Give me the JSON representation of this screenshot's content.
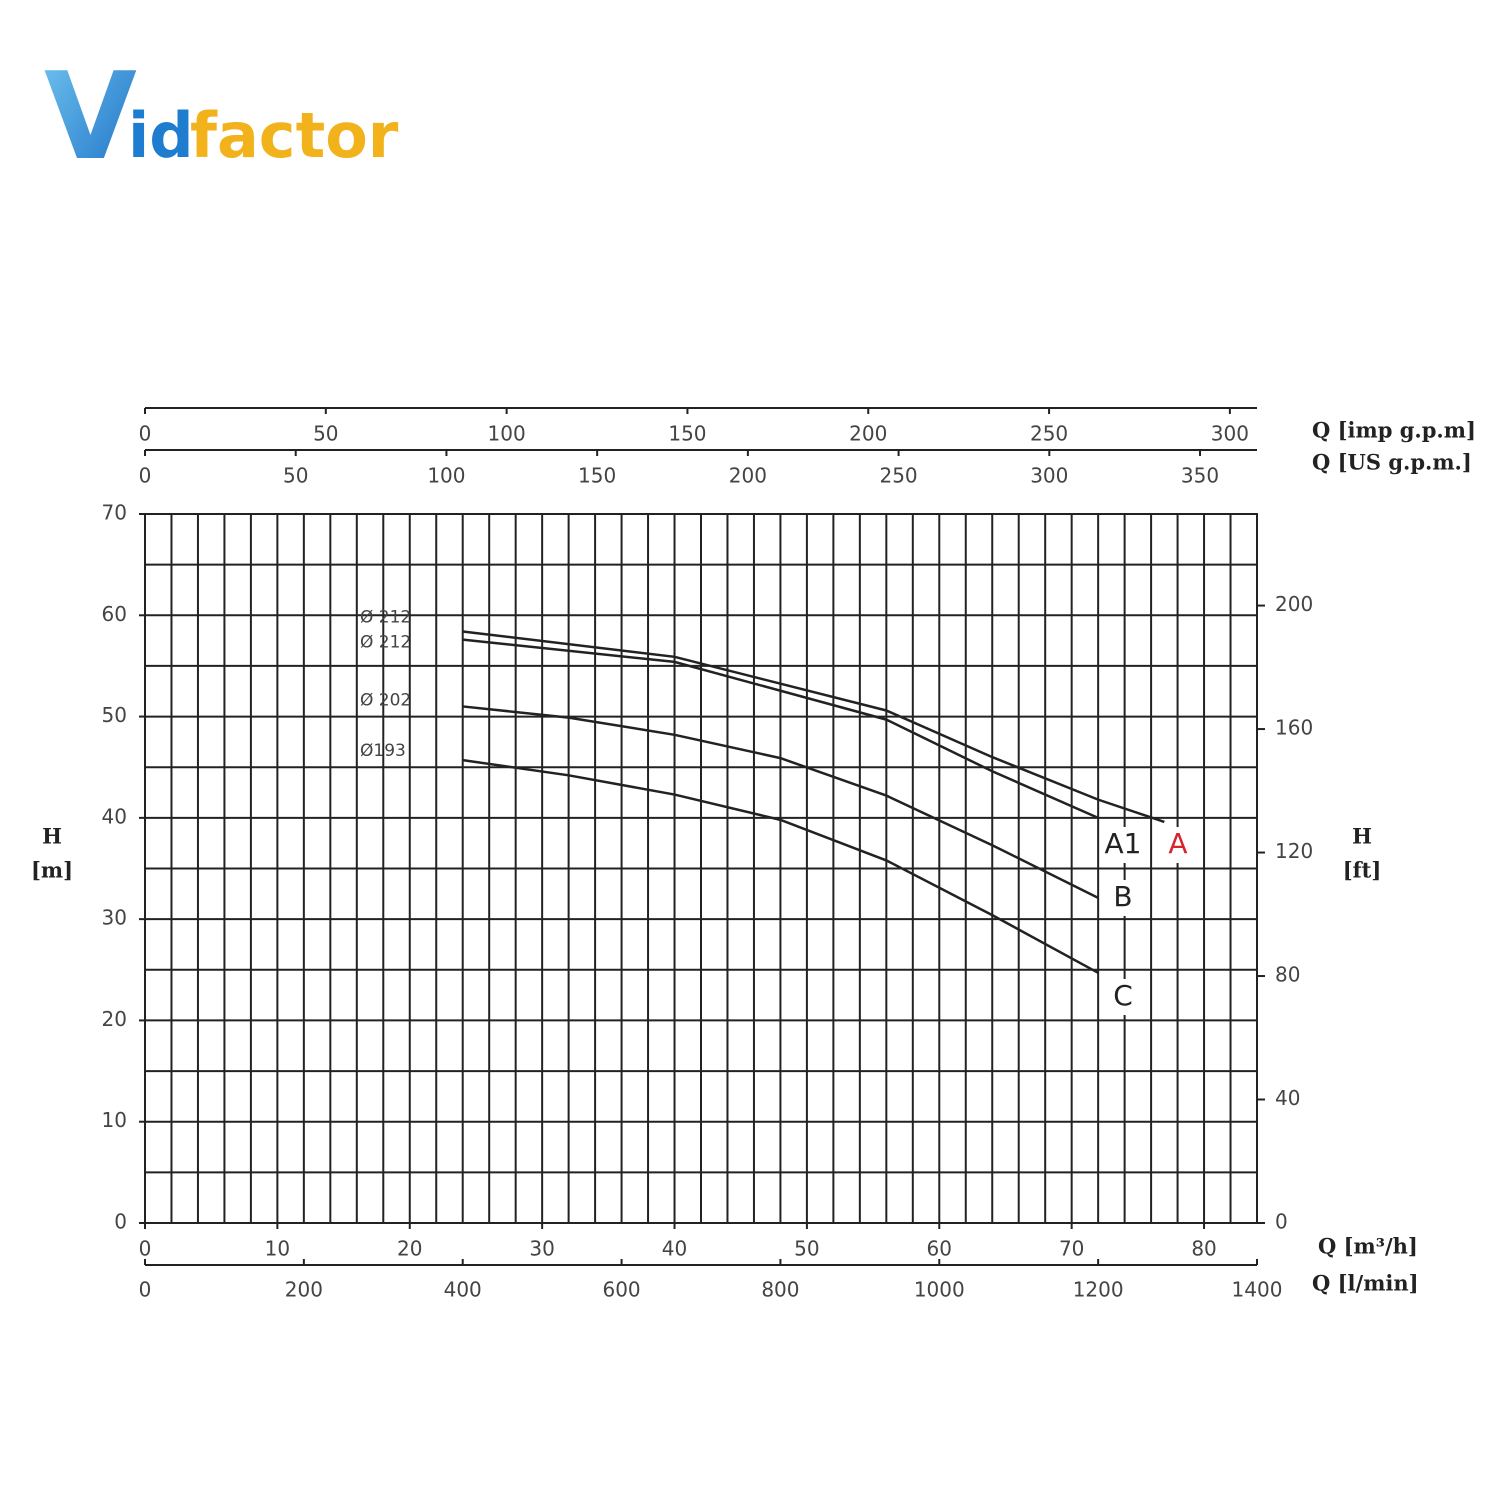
{
  "logo": {
    "mark": "V",
    "part1": "id",
    "part2": "factor"
  },
  "chart_data": {
    "type": "line",
    "xlabel": "Q [m³/h]",
    "xlim": [
      0,
      84
    ],
    "xticks": [
      0,
      10,
      20,
      30,
      40,
      50,
      60,
      70,
      80
    ],
    "ylabel": "H",
    "yunit": "[m]",
    "ylim": [
      0,
      70
    ],
    "yticks": [
      0,
      10,
      20,
      30,
      40,
      50,
      60,
      70
    ],
    "y2label": "H",
    "y2unit": "[ft]",
    "y2lim": [
      0,
      229.66
    ],
    "y2ticks": [
      0,
      40,
      80,
      120,
      160,
      200
    ],
    "grid": true,
    "grid_step": {
      "x": 2,
      "y": 5
    },
    "extra_x_axes": [
      {
        "label": "Q [imp g.p.m]",
        "position": "top",
        "lim": [
          0,
          307.5
        ],
        "ticks": [
          0,
          50,
          100,
          150,
          200,
          250,
          300
        ]
      },
      {
        "label": "Q [US g.p.m.]",
        "position": "top",
        "lim": [
          0,
          368.9
        ],
        "ticks": [
          0,
          50,
          100,
          150,
          200,
          250,
          300,
          350
        ]
      },
      {
        "label": "Q [l/min]",
        "position": "bottom",
        "lim": [
          0,
          1400
        ],
        "ticks": [
          0,
          200,
          400,
          600,
          800,
          1000,
          1200,
          1400
        ]
      }
    ],
    "series": [
      {
        "name": "A",
        "diameter": "Ø 212",
        "color": "#222222",
        "label_color": "#d8232a",
        "x": [
          24,
          40,
          56,
          64,
          72,
          77
        ],
        "values": [
          58.4,
          55.9,
          50.6,
          46.0,
          41.8,
          39.6
        ]
      },
      {
        "name": "A1",
        "diameter": "Ø 212",
        "color": "#222222",
        "label_color": "#222222",
        "x": [
          24,
          40,
          56,
          64,
          72
        ],
        "values": [
          57.6,
          55.4,
          49.7,
          44.6,
          40.0
        ]
      },
      {
        "name": "B",
        "diameter": "Ø 202",
        "color": "#222222",
        "label_color": "#222222",
        "x": [
          24,
          32,
          40,
          48,
          56,
          64,
          72
        ],
        "values": [
          51.0,
          49.9,
          48.2,
          45.9,
          42.2,
          37.3,
          32.1
        ]
      },
      {
        "name": "C",
        "diameter": "Ø193",
        "color": "#222222",
        "label_color": "#222222",
        "x": [
          24,
          32,
          40,
          48,
          56,
          64,
          72
        ],
        "values": [
          45.7,
          44.2,
          42.3,
          39.8,
          35.8,
          30.4,
          24.7
        ]
      }
    ]
  }
}
